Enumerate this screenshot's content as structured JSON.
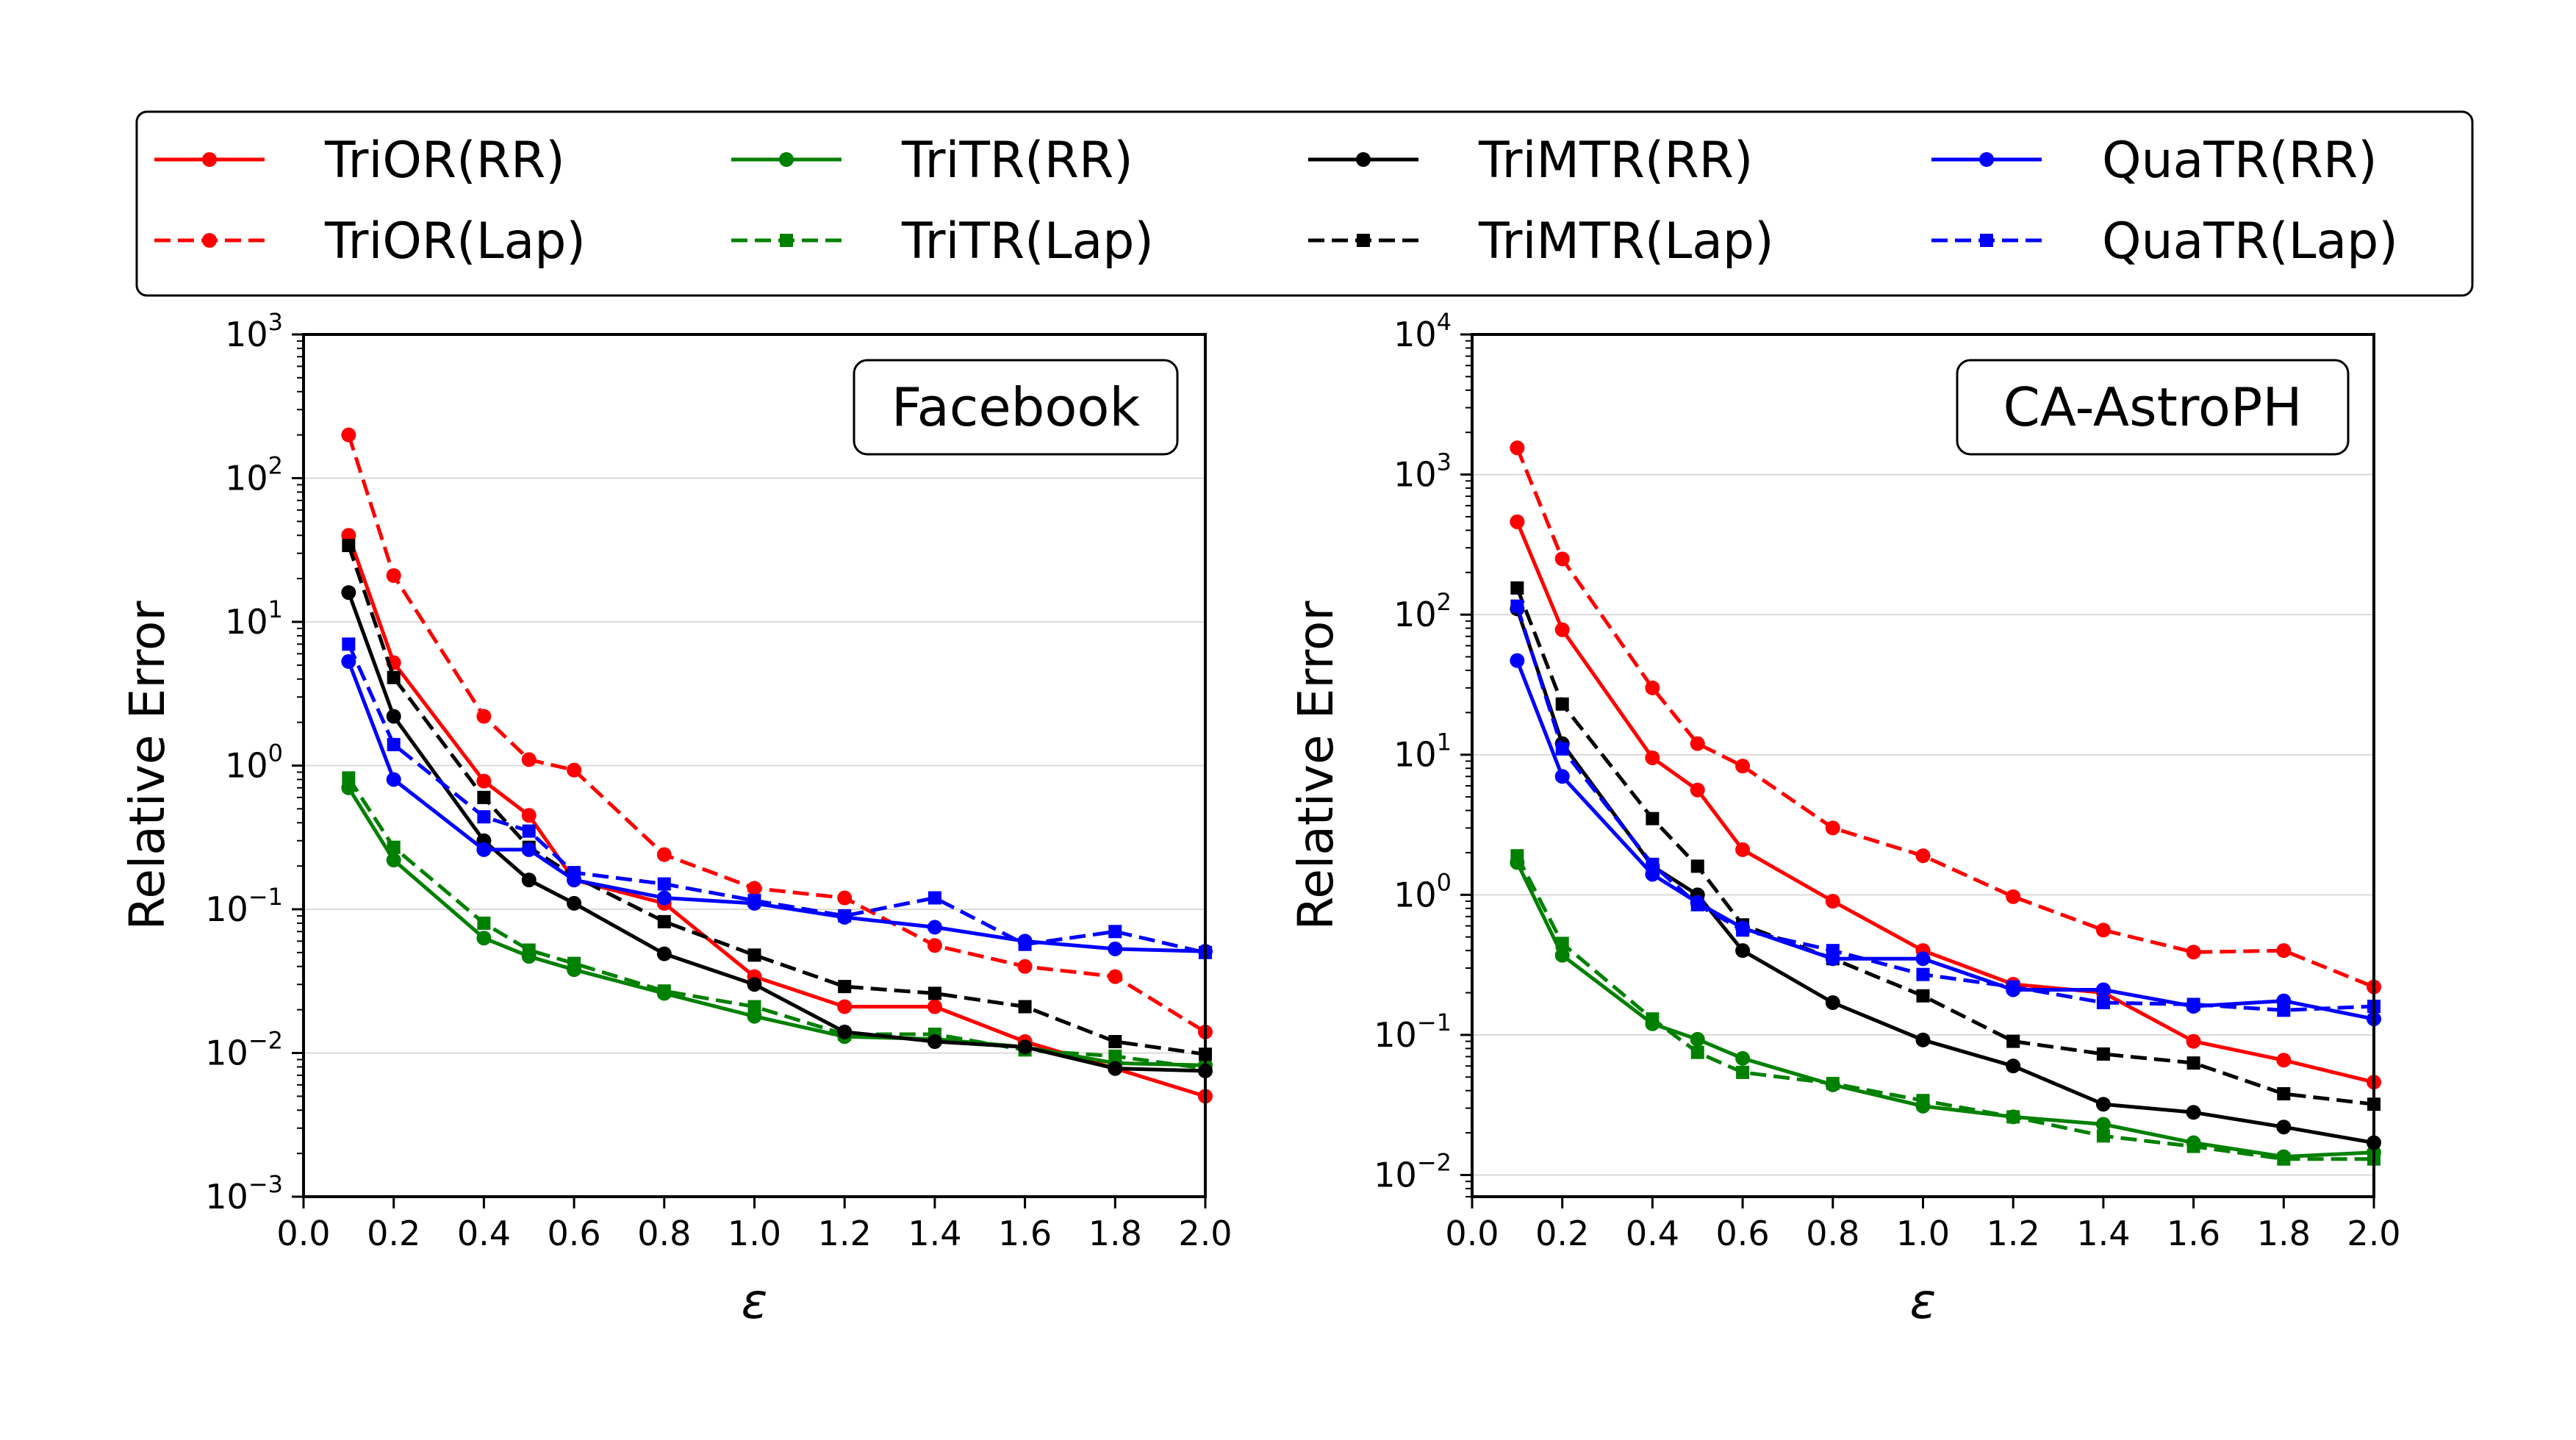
{
  "chart_data": [
    {
      "type": "line",
      "title": "Facebook",
      "xlabel": "ε",
      "ylabel": "Relative Error",
      "xlim": [
        0.0,
        2.0
      ],
      "ylim": [
        0.001,
        1000
      ],
      "yscale": "log",
      "x_ticks": [
        "0.0",
        "0.2",
        "0.4",
        "0.6",
        "0.8",
        "1.0",
        "1.2",
        "1.4",
        "1.6",
        "1.8",
        "2.0"
      ],
      "y_ticks": [
        {
          "base": "10",
          "exp": "−3"
        },
        {
          "base": "10",
          "exp": "−2"
        },
        {
          "base": "10",
          "exp": "−1"
        },
        {
          "base": "10",
          "exp": "0"
        },
        {
          "base": "10",
          "exp": "1"
        },
        {
          "base": "10",
          "exp": "2"
        },
        {
          "base": "10",
          "exp": "3"
        }
      ],
      "grid": "horizontal",
      "x": [
        0.1,
        0.2,
        0.4,
        0.5,
        0.6,
        0.8,
        1.0,
        1.2,
        1.4,
        1.6,
        1.8,
        2.0
      ],
      "series": [
        {
          "name": "TriOR(RR)",
          "color": "#ff0000",
          "dash": "solid",
          "marker": "circle",
          "values": [
            40,
            5.2,
            0.78,
            0.45,
            0.16,
            0.11,
            0.034,
            0.021,
            0.021,
            0.012,
            0.0078,
            0.005
          ]
        },
        {
          "name": "TriOR(Lap)",
          "color": "#ff0000",
          "dash": "dashed",
          "marker": "circle",
          "values": [
            200,
            21,
            2.2,
            1.1,
            0.93,
            0.24,
            0.14,
            0.12,
            0.056,
            0.04,
            0.034,
            0.014
          ]
        },
        {
          "name": "TriTR(RR)",
          "color": "#008000",
          "dash": "solid",
          "marker": "circle",
          "values": [
            0.7,
            0.22,
            0.063,
            0.047,
            0.038,
            0.026,
            0.018,
            0.013,
            0.0125,
            0.011,
            0.0085,
            0.0082
          ]
        },
        {
          "name": "TriTR(Lap)",
          "color": "#008000",
          "dash": "dashed",
          "marker": "square",
          "values": [
            0.82,
            0.27,
            0.08,
            0.052,
            0.042,
            0.027,
            0.021,
            0.0135,
            0.0135,
            0.0105,
            0.0095,
            0.0078
          ]
        },
        {
          "name": "TriMTR(RR)",
          "color": "#000000",
          "dash": "solid",
          "marker": "circle",
          "values": [
            16,
            2.2,
            0.3,
            0.16,
            0.11,
            0.049,
            0.03,
            0.014,
            0.012,
            0.011,
            0.0078,
            0.0075
          ]
        },
        {
          "name": "TriMTR(Lap)",
          "color": "#000000",
          "dash": "dashed",
          "marker": "square",
          "values": [
            34,
            4.1,
            0.6,
            0.27,
            0.17,
            0.082,
            0.048,
            0.029,
            0.026,
            0.021,
            0.012,
            0.0098
          ]
        },
        {
          "name": "QuaTR(RR)",
          "color": "#0000ff",
          "dash": "solid",
          "marker": "circle",
          "values": [
            5.3,
            0.8,
            0.26,
            0.26,
            0.16,
            0.12,
            0.11,
            0.088,
            0.075,
            0.06,
            0.053,
            0.051
          ]
        },
        {
          "name": "QuaTR(Lap)",
          "color": "#0000ff",
          "dash": "dashed",
          "marker": "square",
          "values": [
            7,
            1.4,
            0.44,
            0.35,
            0.18,
            0.15,
            0.115,
            0.09,
            0.12,
            0.057,
            0.07,
            0.05
          ]
        }
      ]
    },
    {
      "type": "line",
      "title": "CA-AstroPH",
      "xlabel": "ε",
      "ylabel": "Relative Error",
      "xlim": [
        0.0,
        2.0
      ],
      "ylim": [
        0.007,
        10000
      ],
      "yscale": "log",
      "x_ticks": [
        "0.0",
        "0.2",
        "0.4",
        "0.6",
        "0.8",
        "1.0",
        "1.2",
        "1.4",
        "1.6",
        "1.8",
        "2.0"
      ],
      "y_ticks": [
        {
          "base": "10",
          "exp": "−2"
        },
        {
          "base": "10",
          "exp": "−1"
        },
        {
          "base": "10",
          "exp": "0"
        },
        {
          "base": "10",
          "exp": "1"
        },
        {
          "base": "10",
          "exp": "2"
        },
        {
          "base": "10",
          "exp": "3"
        },
        {
          "base": "10",
          "exp": "4"
        }
      ],
      "grid": "horizontal",
      "x": [
        0.1,
        0.2,
        0.4,
        0.5,
        0.6,
        0.8,
        1.0,
        1.2,
        1.4,
        1.6,
        1.8,
        2.0
      ],
      "series": [
        {
          "name": "TriOR(RR)",
          "color": "#ff0000",
          "dash": "solid",
          "marker": "circle",
          "values": [
            460,
            78,
            9.5,
            5.6,
            2.1,
            0.9,
            0.4,
            0.23,
            0.2,
            0.09,
            0.066,
            0.046
          ]
        },
        {
          "name": "TriOR(Lap)",
          "color": "#ff0000",
          "dash": "dashed",
          "marker": "circle",
          "values": [
            1550,
            250,
            30,
            12,
            8.3,
            3,
            1.9,
            0.97,
            0.56,
            0.39,
            0.4,
            0.22
          ]
        },
        {
          "name": "TriTR(RR)",
          "color": "#008000",
          "dash": "solid",
          "marker": "circle",
          "values": [
            1.7,
            0.37,
            0.12,
            0.093,
            0.068,
            0.044,
            0.031,
            0.026,
            0.023,
            0.017,
            0.0135,
            0.0145
          ]
        },
        {
          "name": "TriTR(Lap)",
          "color": "#008000",
          "dash": "dashed",
          "marker": "square",
          "values": [
            1.9,
            0.45,
            0.13,
            0.075,
            0.054,
            0.045,
            0.034,
            0.026,
            0.019,
            0.016,
            0.013,
            0.013
          ]
        },
        {
          "name": "TriMTR(RR)",
          "color": "#000000",
          "dash": "solid",
          "marker": "circle",
          "values": [
            110,
            12,
            1.6,
            1,
            0.4,
            0.17,
            0.092,
            0.06,
            0.032,
            0.028,
            0.022,
            0.017
          ]
        },
        {
          "name": "TriMTR(Lap)",
          "color": "#000000",
          "dash": "dashed",
          "marker": "square",
          "values": [
            155,
            23,
            3.5,
            1.6,
            0.61,
            0.35,
            0.19,
            0.09,
            0.073,
            0.063,
            0.038,
            0.032
          ]
        },
        {
          "name": "QuaTR(RR)",
          "color": "#0000ff",
          "dash": "solid",
          "marker": "circle",
          "values": [
            47,
            7,
            1.4,
            0.88,
            0.58,
            0.35,
            0.35,
            0.21,
            0.21,
            0.16,
            0.175,
            0.13
          ]
        },
        {
          "name": "QuaTR(Lap)",
          "color": "#0000ff",
          "dash": "dashed",
          "marker": "square",
          "values": [
            115,
            11,
            1.65,
            0.85,
            0.56,
            0.4,
            0.27,
            0.22,
            0.17,
            0.165,
            0.15,
            0.16
          ]
        }
      ]
    }
  ]
}
